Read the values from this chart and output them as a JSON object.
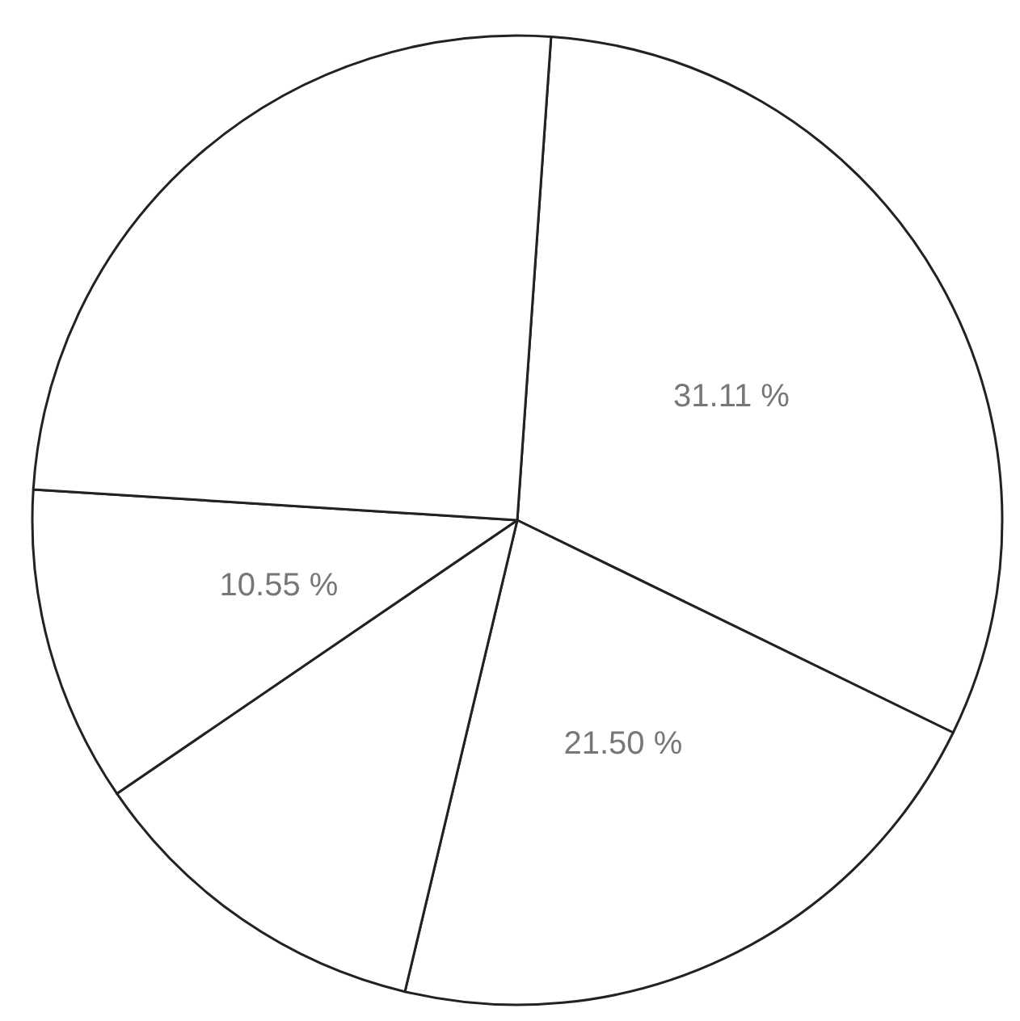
{
  "chart_data": {
    "type": "pie",
    "categories": [
      null,
      null,
      null,
      null,
      null
    ],
    "values": [
      31.11,
      21.5,
      11.74,
      10.55,
      25.1
    ],
    "value_labels": [
      "31.11 %",
      "21.50 %",
      null,
      "10.55 %",
      null
    ],
    "colors": [
      "#ffffff",
      "#ffffff",
      "#ffffff",
      "#ffffff",
      "#ffffff"
    ]
  }
}
